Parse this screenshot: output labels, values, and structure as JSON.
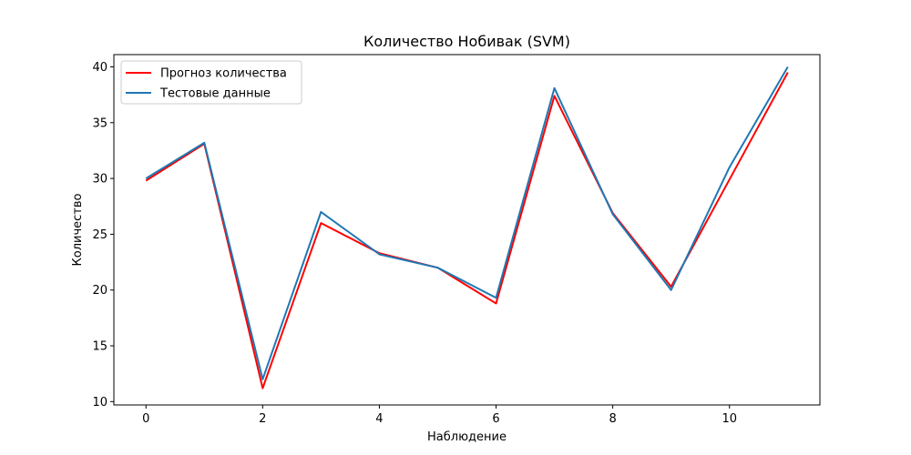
{
  "chart_data": {
    "type": "line",
    "title": "Количество Нобивак   (SVM)",
    "xlabel": "Наблюдение",
    "ylabel": "Количество",
    "xlim": [
      -0.55,
      11.55
    ],
    "ylim": [
      9.7,
      41.1
    ],
    "xticks": [
      0,
      2,
      4,
      6,
      8,
      10
    ],
    "yticks": [
      10,
      15,
      20,
      25,
      30,
      35,
      40
    ],
    "grid": false,
    "legend_position": "top-left",
    "x": [
      0,
      1,
      2,
      3,
      4,
      5,
      6,
      7,
      8,
      9,
      10,
      11
    ],
    "series": [
      {
        "name": "Прогноз количества",
        "color": "#ff0000",
        "values": [
          29.8,
          33.1,
          11.2,
          26.0,
          23.3,
          22.0,
          18.8,
          37.4,
          26.9,
          20.3,
          29.9,
          39.5
        ]
      },
      {
        "name": "Тестовые данные",
        "color": "#1f77b4",
        "values": [
          30.0,
          33.2,
          12.0,
          27.0,
          23.2,
          22.0,
          19.3,
          38.1,
          26.8,
          20.0,
          31.0,
          40.0
        ]
      }
    ]
  }
}
